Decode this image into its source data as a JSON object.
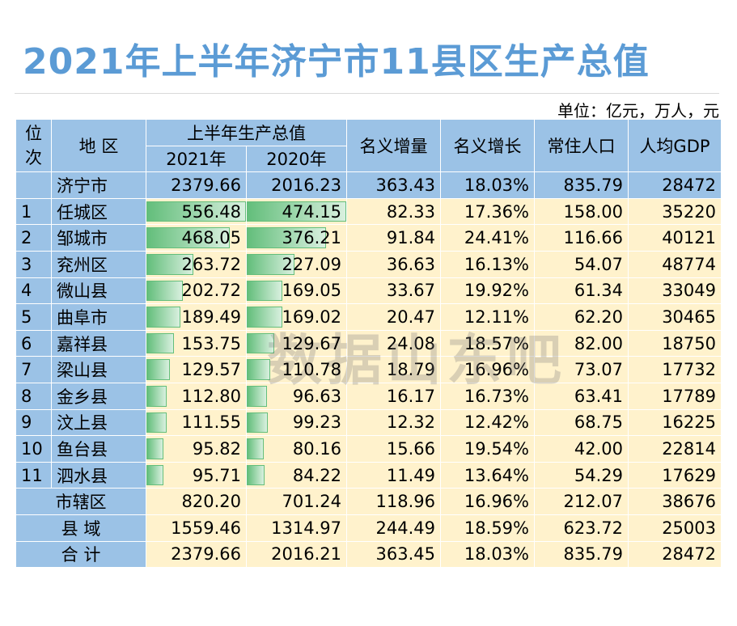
{
  "title": "2021年上半年济宁市11县区生产总值",
  "unit": "单位：亿元，万人，元",
  "watermark": "数据山东吧",
  "colors": {
    "header": "#9bc2e6",
    "row": "#fff2cc",
    "bar": "#63be7b",
    "title": "#5b9bd5"
  },
  "headers": {
    "rank": "位次",
    "region": "地 区",
    "gdp_group": "上半年生产总值",
    "y2021": "2021年",
    "y2020": "2020年",
    "increase": "名义增量",
    "growth": "名义增长",
    "population": "常住人口",
    "per_capita": "人均GDP"
  },
  "city": {
    "name": "济宁市",
    "v2021": "2379.66",
    "v2020": "2016.23",
    "increase": "363.43",
    "growth": "18.03%",
    "population": "835.79",
    "per_capita": "28472"
  },
  "rows": [
    {
      "rank": "1",
      "name": "任城区",
      "v2021": "556.48",
      "v2020": "474.15",
      "increase": "82.33",
      "growth": "17.36%",
      "population": "158.00",
      "per_capita": "35220"
    },
    {
      "rank": "2",
      "name": "邹城市",
      "v2021": "468.05",
      "v2020": "376.21",
      "increase": "91.84",
      "growth": "24.41%",
      "population": "116.66",
      "per_capita": "40121"
    },
    {
      "rank": "3",
      "name": "兖州区",
      "v2021": "263.72",
      "v2020": "227.09",
      "increase": "36.63",
      "growth": "16.13%",
      "population": "54.07",
      "per_capita": "48774"
    },
    {
      "rank": "4",
      "name": "微山县",
      "v2021": "202.72",
      "v2020": "169.05",
      "increase": "33.67",
      "growth": "19.92%",
      "population": "61.34",
      "per_capita": "33049"
    },
    {
      "rank": "5",
      "name": "曲阜市",
      "v2021": "189.49",
      "v2020": "169.02",
      "increase": "20.47",
      "growth": "12.11%",
      "population": "62.20",
      "per_capita": "30465"
    },
    {
      "rank": "6",
      "name": "嘉祥县",
      "v2021": "153.75",
      "v2020": "129.67",
      "increase": "24.08",
      "growth": "18.57%",
      "population": "82.00",
      "per_capita": "18750"
    },
    {
      "rank": "7",
      "name": "梁山县",
      "v2021": "129.57",
      "v2020": "110.78",
      "increase": "18.79",
      "growth": "16.96%",
      "population": "73.07",
      "per_capita": "17732"
    },
    {
      "rank": "8",
      "name": "金乡县",
      "v2021": "112.80",
      "v2020": "96.63",
      "increase": "16.17",
      "growth": "16.73%",
      "population": "63.41",
      "per_capita": "17789"
    },
    {
      "rank": "9",
      "name": "汶上县",
      "v2021": "111.55",
      "v2020": "99.23",
      "increase": "12.32",
      "growth": "12.42%",
      "population": "68.75",
      "per_capita": "16225"
    },
    {
      "rank": "10",
      "name": "鱼台县",
      "v2021": "95.82",
      "v2020": "80.16",
      "increase": "15.66",
      "growth": "19.54%",
      "population": "42.00",
      "per_capita": "22814"
    },
    {
      "rank": "11",
      "name": "泗水县",
      "v2021": "95.71",
      "v2020": "84.22",
      "increase": "11.49",
      "growth": "13.64%",
      "population": "54.29",
      "per_capita": "17629"
    }
  ],
  "summary": [
    {
      "name": "市辖区",
      "v2021": "820.20",
      "v2020": "701.24",
      "increase": "118.96",
      "growth": "16.96%",
      "population": "212.07",
      "per_capita": "38676"
    },
    {
      "name": "县 域",
      "v2021": "1559.46",
      "v2020": "1314.97",
      "increase": "244.49",
      "growth": "18.59%",
      "population": "623.72",
      "per_capita": "25003"
    },
    {
      "name": "合 计",
      "v2021": "2379.66",
      "v2020": "2016.21",
      "increase": "363.45",
      "growth": "18.03%",
      "population": "835.79",
      "per_capita": "28472"
    }
  ]
}
